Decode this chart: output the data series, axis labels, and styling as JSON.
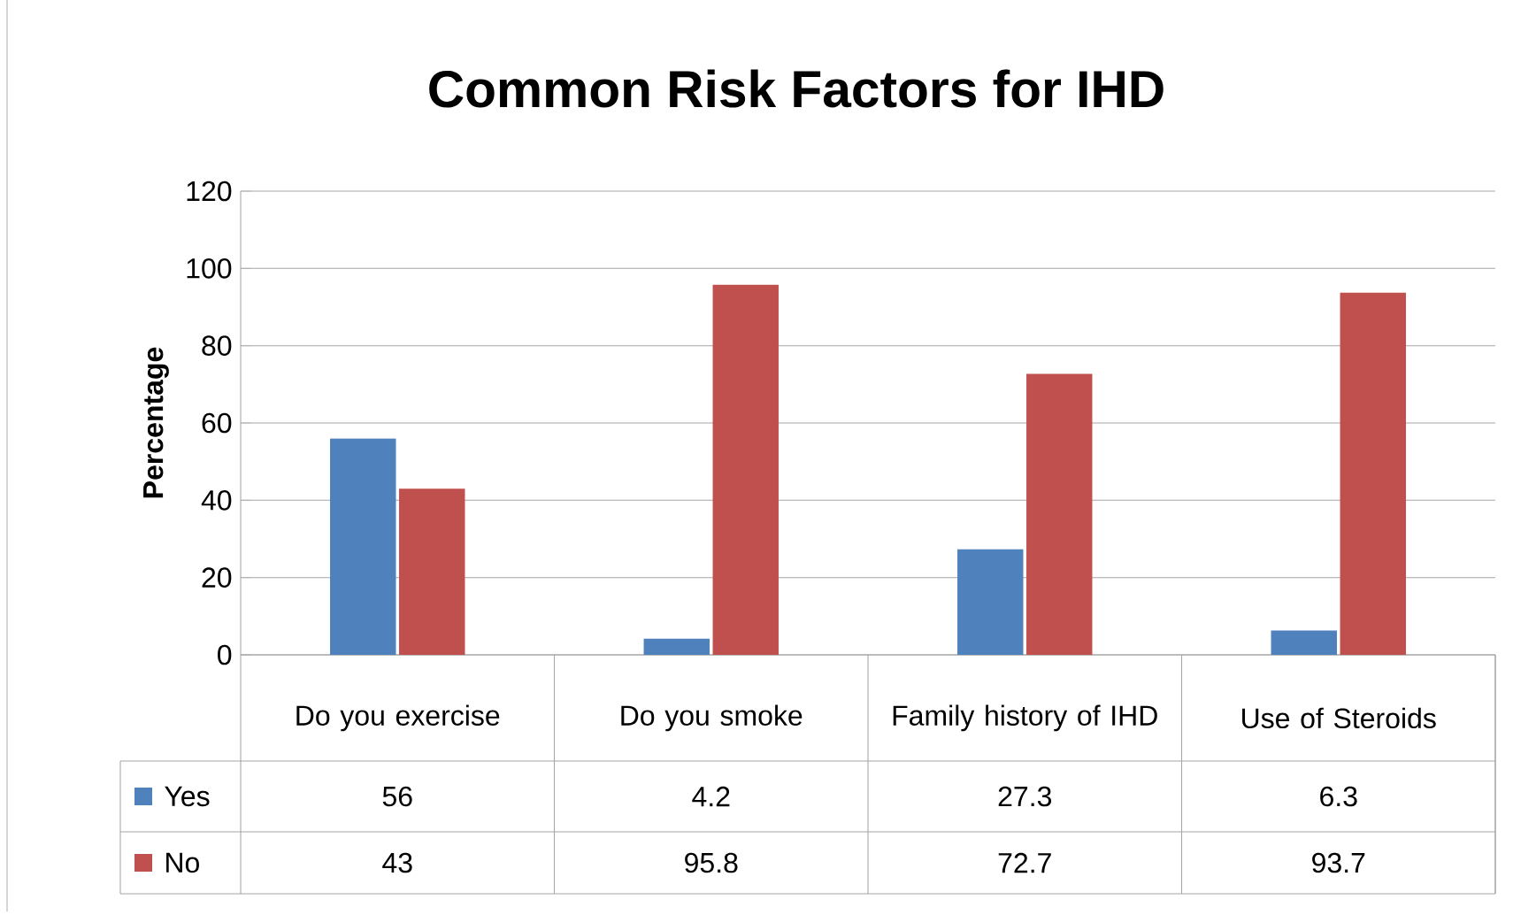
{
  "chart_data": {
    "type": "bar",
    "title": "Common Risk Factors for IHD",
    "ylabel": "Percentage",
    "categories": [
      "Do you exercise",
      "Do you smoke",
      "Family history of IHD",
      "Use of Steroids"
    ],
    "series": [
      {
        "name": "Yes",
        "color": "#4f81bd",
        "values": [
          56,
          4.2,
          27.3,
          6.3
        ],
        "value_labels": [
          "56",
          "4.2",
          "27.3",
          "6.3"
        ]
      },
      {
        "name": "No",
        "color": "#c0504d",
        "values": [
          43,
          95.8,
          72.7,
          93.7
        ],
        "value_labels": [
          "43",
          "95.8",
          "72.7",
          "93.7"
        ]
      }
    ],
    "ylim": [
      0,
      120
    ],
    "yticks": [
      0,
      20,
      40,
      60,
      80,
      100,
      120
    ],
    "grid": "y",
    "legend": "bottom"
  }
}
